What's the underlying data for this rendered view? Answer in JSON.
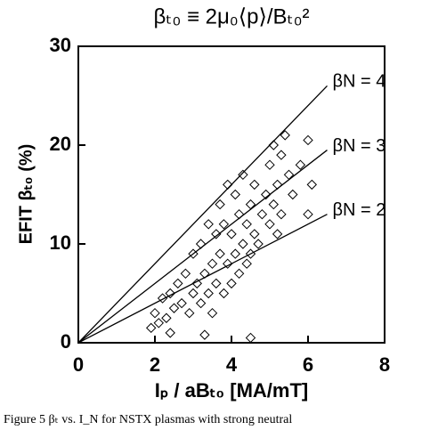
{
  "chart_data": {
    "type": "scatter",
    "title": "βₜ₀ ≡ 2μ₀⟨p⟩/Bₜ₀²",
    "x_label": "Iₚ / aBₜ₀ [MA/mT]",
    "y_label": "EFIT βₜ₀ (%)",
    "caption": "Figure 5 βₜ vs. I_N for NSTX plasmas with strong neutral",
    "xlim": [
      0,
      8
    ],
    "ylim": [
      0,
      30
    ],
    "xticks": [
      0,
      2,
      4,
      6,
      8
    ],
    "yticks": [
      0,
      10,
      20,
      30
    ],
    "color": "#000000",
    "x": [
      1.9,
      2.0,
      2.1,
      2.2,
      2.3,
      2.4,
      2.5,
      2.6,
      2.7,
      2.8,
      2.9,
      3.0,
      3.0,
      3.1,
      3.2,
      3.2,
      3.3,
      3.4,
      3.4,
      3.5,
      3.5,
      3.6,
      3.6,
      3.7,
      3.7,
      3.8,
      3.8,
      3.9,
      3.9,
      4.0,
      4.0,
      4.1,
      4.1,
      4.2,
      4.2,
      4.3,
      4.3,
      4.4,
      4.4,
      4.5,
      4.5,
      4.6,
      4.6,
      4.7,
      4.8,
      4.9,
      5.0,
      5.0,
      5.1,
      5.1,
      5.2,
      5.2,
      5.3,
      5.3,
      5.4,
      5.5,
      5.6,
      5.8,
      6.0,
      6.0,
      6.1,
      4.5,
      3.3,
      2.4
    ],
    "y": [
      1.5,
      3,
      2,
      4.5,
      2.5,
      5,
      3.5,
      6,
      4,
      7,
      3,
      5,
      9,
      6,
      4,
      10,
      7,
      5,
      12,
      8,
      3,
      11,
      6,
      14,
      9,
      5,
      12,
      8,
      16,
      6,
      11,
      9,
      15,
      7,
      13,
      10,
      17,
      8,
      12,
      9,
      14,
      11,
      16,
      10,
      13,
      15,
      12,
      18,
      14,
      20,
      16,
      11,
      19,
      13,
      21,
      17,
      15,
      18,
      20.5,
      13,
      16,
      0.5,
      0.8,
      1
    ],
    "lines": [
      {
        "label": "βN = 4",
        "x": [
          0,
          6.5
        ],
        "y": [
          0,
          26
        ]
      },
      {
        "label": "βN = 3",
        "x": [
          0,
          6.5
        ],
        "y": [
          0,
          19.5
        ]
      },
      {
        "label": "βN = 2",
        "x": [
          0,
          6.5
        ],
        "y": [
          0,
          13
        ]
      }
    ]
  }
}
